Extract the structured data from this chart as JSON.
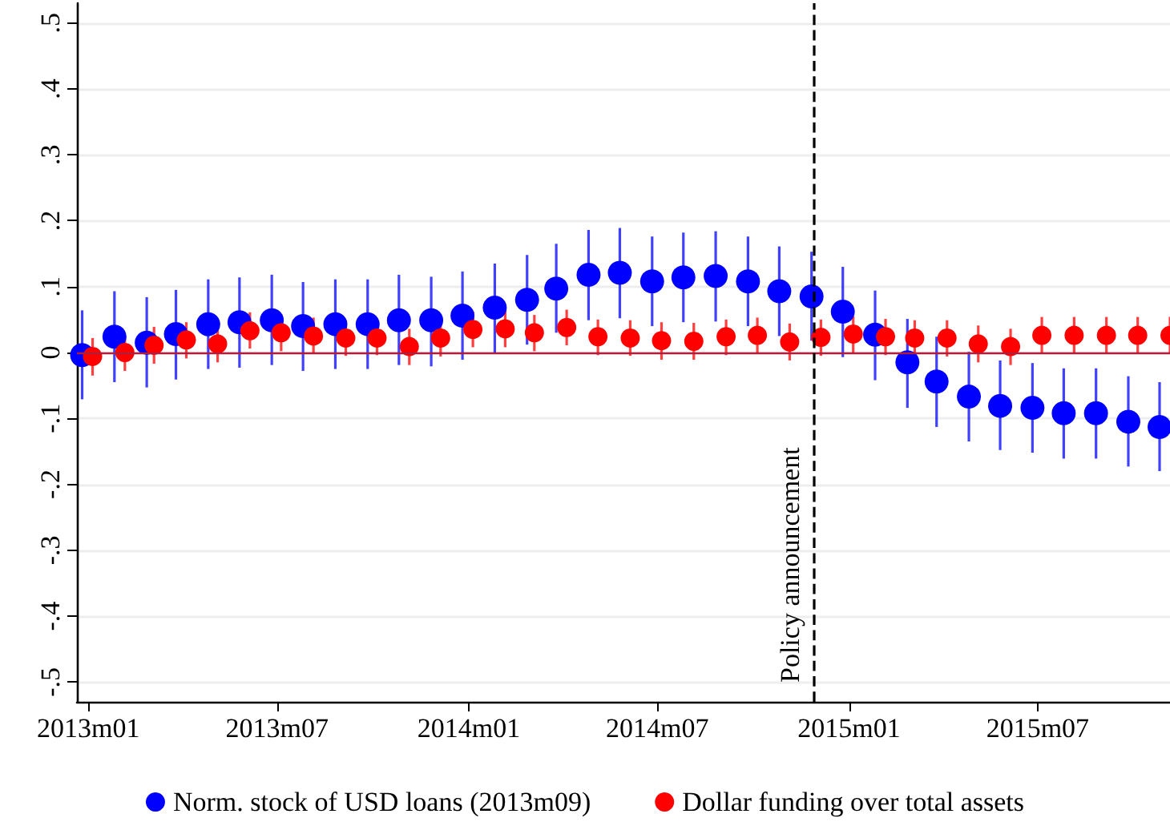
{
  "chart_data": {
    "type": "scatter",
    "series": [
      {
        "name": "Norm. stock of USD loans (2013m09)",
        "color": "#0000ff",
        "x": [
          "2012-12-26",
          "2013-01-26",
          "2013-02-26",
          "2013-03-26",
          "2013-04-26",
          "2013-05-26",
          "2013-06-26",
          "2013-07-26",
          "2013-08-26",
          "2013-09-26",
          "2013-10-26",
          "2013-11-26",
          "2013-12-26",
          "2014-01-26",
          "2014-02-26",
          "2014-03-26",
          "2014-04-26",
          "2014-05-26",
          "2014-06-26",
          "2014-07-26",
          "2014-08-26",
          "2014-09-26",
          "2014-10-26",
          "2014-11-26",
          "2014-12-26",
          "2015-01-26",
          "2015-02-26",
          "2015-03-26",
          "2015-04-26",
          "2015-05-26",
          "2015-06-26",
          "2015-07-26",
          "2015-08-26",
          "2015-09-26",
          "2015-10-26"
        ],
        "values": [
          -0.004,
          0.024,
          0.015,
          0.028,
          0.043,
          0.046,
          0.049,
          0.04,
          0.043,
          0.043,
          0.049,
          0.049,
          0.056,
          0.068,
          0.08,
          0.097,
          0.118,
          0.121,
          0.108,
          0.114,
          0.116,
          0.108,
          0.093,
          0.085,
          0.062,
          0.027,
          -0.015,
          -0.044,
          -0.067,
          -0.081,
          -0.084,
          -0.092,
          -0.092,
          -0.105,
          -0.113
        ],
        "errors": [
          [
            -0.071,
            0.064
          ],
          [
            -0.045,
            0.093
          ],
          [
            -0.053,
            0.084
          ],
          [
            -0.041,
            0.095
          ],
          [
            -0.025,
            0.111
          ],
          [
            -0.023,
            0.114
          ],
          [
            -0.019,
            0.118
          ],
          [
            -0.028,
            0.107
          ],
          [
            -0.025,
            0.111
          ],
          [
            -0.025,
            0.111
          ],
          [
            -0.019,
            0.118
          ],
          [
            -0.021,
            0.115
          ],
          [
            -0.011,
            0.123
          ],
          [
            0,
            0.135
          ],
          [
            0.012,
            0.148
          ],
          [
            0.03,
            0.165
          ],
          [
            0.049,
            0.186
          ],
          [
            0.052,
            0.189
          ],
          [
            0.04,
            0.176
          ],
          [
            0.046,
            0.182
          ],
          [
            0.047,
            0.184
          ],
          [
            0.04,
            0.176
          ],
          [
            0.025,
            0.161
          ],
          [
            0.018,
            0.153
          ],
          [
            -0.007,
            0.13
          ],
          [
            -0.042,
            0.094
          ],
          [
            -0.084,
            0.051
          ],
          [
            -0.113,
            0.024
          ],
          [
            -0.135,
            0.001
          ],
          [
            -0.148,
            -0.012
          ],
          [
            -0.152,
            -0.016
          ],
          [
            -0.161,
            -0.024
          ],
          [
            -0.161,
            -0.024
          ],
          [
            -0.173,
            -0.036
          ],
          [
            -0.18,
            -0.045
          ]
        ]
      },
      {
        "name": "Dollar funding over total assets",
        "color": "#ff0000",
        "x": [
          "2013-01-05",
          "2013-02-05",
          "2013-03-05",
          "2013-04-05",
          "2013-05-05",
          "2013-06-05",
          "2013-07-05",
          "2013-08-05",
          "2013-09-05",
          "2013-10-05",
          "2013-11-05",
          "2013-12-05",
          "2014-01-05",
          "2014-02-05",
          "2014-03-05",
          "2014-04-05",
          "2014-05-05",
          "2014-06-05",
          "2014-07-05",
          "2014-08-05",
          "2014-09-05",
          "2014-10-05",
          "2014-11-05",
          "2014-12-05",
          "2015-01-05",
          "2015-02-05",
          "2015-03-05",
          "2015-04-05",
          "2015-05-05",
          "2015-06-05",
          "2015-07-05",
          "2015-08-05",
          "2015-09-05",
          "2015-10-05",
          "2015-11-05"
        ],
        "values": [
          -0.006,
          0,
          0.011,
          0.019,
          0.013,
          0.033,
          0.03,
          0.025,
          0.022,
          0.022,
          0.009,
          0.022,
          0.035,
          0.036,
          0.03,
          0.038,
          0.024,
          0.022,
          0.018,
          0.017,
          0.024,
          0.026,
          0.016,
          0.023,
          0.028,
          0.024,
          0.022,
          0.022,
          0.013,
          0.009,
          0.026,
          0.026,
          0.026,
          0.026,
          0.026
        ],
        "errors": [
          [
            -0.035,
            0.022
          ],
          [
            -0.028,
            0.026
          ],
          [
            -0.017,
            0.039
          ],
          [
            -0.009,
            0.046
          ],
          [
            -0.015,
            0.04
          ],
          [
            0.006,
            0.061
          ],
          [
            0.002,
            0.058
          ],
          [
            -0.002,
            0.053
          ],
          [
            -0.005,
            0.049
          ],
          [
            -0.004,
            0.049
          ],
          [
            -0.019,
            0.036
          ],
          [
            -0.006,
            0.049
          ],
          [
            0.008,
            0.062
          ],
          [
            0.008,
            0.063
          ],
          [
            0.002,
            0.057
          ],
          [
            0.011,
            0.065
          ],
          [
            -0.004,
            0.05
          ],
          [
            -0.005,
            0.049
          ],
          [
            -0.011,
            0.046
          ],
          [
            -0.011,
            0.045
          ],
          [
            -0.004,
            0.05
          ],
          [
            -0.002,
            0.053
          ],
          [
            -0.012,
            0.044
          ],
          [
            -0.005,
            0.05
          ],
          [
            0,
            0.055
          ],
          [
            -0.004,
            0.051
          ],
          [
            -0.006,
            0.049
          ],
          [
            -0.006,
            0.049
          ],
          [
            -0.015,
            0.041
          ],
          [
            -0.019,
            0.036
          ],
          [
            -0.002,
            0.054
          ],
          [
            -0.002,
            0.054
          ],
          [
            -0.002,
            0.054
          ],
          [
            -0.002,
            0.054
          ],
          [
            -0.002,
            0.054
          ]
        ]
      }
    ],
    "xlim": [
      "2012-12-21",
      "2015-11-05"
    ],
    "xticks": [
      {
        "value": "2013-01",
        "label": "2013m01"
      },
      {
        "value": "2013-07",
        "label": "2013m07"
      },
      {
        "value": "2014-01",
        "label": "2014m01"
      },
      {
        "value": "2014-07",
        "label": "2014m07"
      },
      {
        "value": "2015-01",
        "label": "2015m01"
      },
      {
        "value": "2015-07",
        "label": "2015m07"
      }
    ],
    "ylim": [
      -0.53,
      0.53
    ],
    "yticks": [
      {
        "value": -0.5,
        "label": "-.5"
      },
      {
        "value": -0.4,
        "label": "-.4"
      },
      {
        "value": -0.3,
        "label": "-.3"
      },
      {
        "value": -0.2,
        "label": "-.2"
      },
      {
        "value": -0.1,
        "label": "-.1"
      },
      0,
      {
        "value": 0.1,
        "label": ".1"
      },
      {
        "value": 0.2,
        "label": ".2"
      },
      {
        "value": 0.3,
        "label": ".3"
      },
      {
        "value": 0.4,
        "label": ".4"
      },
      {
        "value": 0.5,
        "label": ".5"
      }
    ],
    "ref_lines": [
      {
        "axis": "y",
        "value": 0,
        "label": null,
        "color": "#b01e3c",
        "line_style": "solid"
      },
      {
        "axis": "x",
        "value": "2014-11-28",
        "label": "Policy announcement",
        "color": "#000000",
        "line_style": "dashed"
      }
    ],
    "grid": "y",
    "legend": "bottom",
    "marker": "circle"
  }
}
